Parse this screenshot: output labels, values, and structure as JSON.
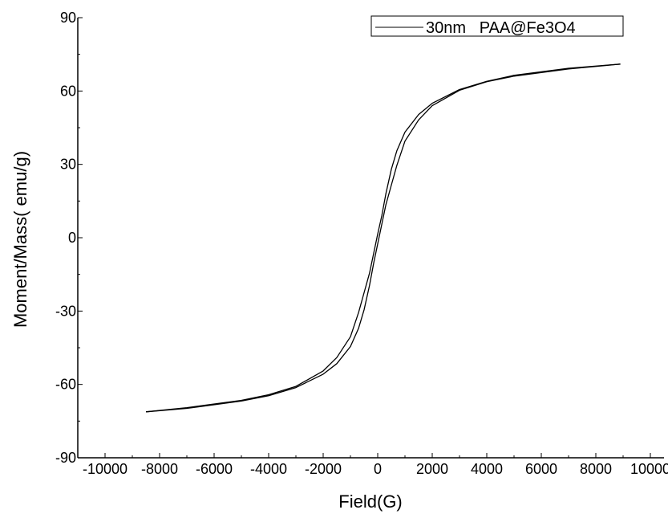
{
  "chart_data": {
    "type": "line",
    "title": "",
    "xlabel": "Field(G)",
    "ylabel": "Moment/Mass( emu/g)",
    "xlim": [
      -11000,
      10500
    ],
    "ylim": [
      -90,
      90
    ],
    "x_ticks": [
      -10000,
      -8000,
      -6000,
      -4000,
      -2000,
      0,
      2000,
      4000,
      6000,
      8000,
      10000
    ],
    "x_tick_labels": [
      "-10000",
      "-8000",
      "-6000",
      "-4000",
      "-2000",
      "0",
      "2000",
      "4000",
      "6000",
      "8000",
      "10000"
    ],
    "y_ticks": [
      -90,
      -60,
      -30,
      0,
      30,
      60,
      90
    ],
    "y_tick_labels": [
      "-90",
      "-60",
      "-30",
      "0",
      "30",
      "60",
      "90"
    ],
    "grid": false,
    "legend_position": "top-right",
    "series": [
      {
        "name": "30nm   PAA@Fe3O4",
        "color": "#000000",
        "branches": [
          {
            "direction": "decreasing field",
            "x": [
              8900,
              7000,
              5000,
              4000,
              3000,
              2000,
              1500,
              1000,
              700,
              500,
              300,
              150,
              0,
              -150,
              -300,
              -500,
              -700,
              -1000,
              -1500,
              -2000,
              -3000,
              -4000,
              -5000,
              -7000,
              -8500
            ],
            "y": [
              71,
              69.3,
              66.4,
              64.0,
              60.6,
              55.0,
              50.4,
              43.2,
              35.5,
              28.0,
              18.0,
              9.0,
              1.5,
              -6.5,
              -14.5,
              -22.5,
              -30.5,
              -40.5,
              -49.0,
              -54.5,
              -60.8,
              -64.2,
              -66.5,
              -69.5,
              -71.2
            ]
          },
          {
            "direction": "increasing field",
            "x": [
              -8500,
              -7000,
              -5000,
              -4000,
              -3000,
              -2000,
              -1500,
              -1000,
              -700,
              -500,
              -300,
              -150,
              0,
              150,
              300,
              500,
              700,
              1000,
              1500,
              2000,
              3000,
              4000,
              5000,
              7000,
              8900
            ],
            "y": [
              -71.2,
              -69.8,
              -66.8,
              -64.6,
              -61.3,
              -55.8,
              -51.5,
              -44.5,
              -37.0,
              -29.5,
              -19.5,
              -10.5,
              -2.5,
              5.5,
              13.5,
              21.5,
              29.5,
              39.5,
              48.2,
              54.0,
              60.3,
              63.8,
              66.1,
              69.0,
              71
            ]
          }
        ]
      }
    ]
  }
}
